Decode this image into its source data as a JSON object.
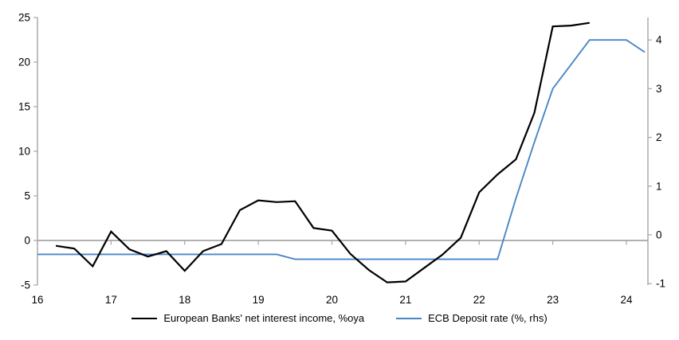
{
  "chart_data": {
    "type": "line",
    "title": "",
    "xlabel": "",
    "ylabel_left": "",
    "ylabel_right": "",
    "grid": "zero-line-only",
    "legend_position": "bottom",
    "x_axis": {
      "ticks": [
        16,
        17,
        18,
        19,
        20,
        21,
        22,
        23,
        24
      ],
      "min": 16,
      "max": 24.29
    },
    "left_axis": {
      "ticks": [
        -5,
        0,
        5,
        10,
        15,
        20,
        25
      ],
      "min": -5,
      "max": 25
    },
    "right_axis": {
      "ticks": [
        -1,
        0,
        1,
        2,
        3,
        4
      ],
      "min": -1.03,
      "max": 4.46
    },
    "series": [
      {
        "name": "European Banks' net interest income, %oya",
        "axis": "left",
        "color": "#000000",
        "x": [
          16.25,
          16.5,
          16.75,
          17,
          17.25,
          17.5,
          17.75,
          18,
          18.25,
          18.5,
          18.75,
          19,
          19.25,
          19.5,
          19.75,
          20,
          20.25,
          20.5,
          20.75,
          21,
          21.25,
          21.5,
          21.75,
          22,
          22.25,
          22.5,
          22.75,
          23,
          23.25,
          23.5
        ],
        "values": [
          -0.6,
          -0.9,
          -2.9,
          1.0,
          -1.0,
          -1.8,
          -1.2,
          -3.4,
          -1.2,
          -0.4,
          3.4,
          4.5,
          4.3,
          4.4,
          1.4,
          1.1,
          -1.5,
          -3.3,
          -4.7,
          -4.6,
          -3.1,
          -1.6,
          0.3,
          5.4,
          7.4,
          9.1,
          14.3,
          24.0,
          24.1,
          24.4
        ]
      },
      {
        "name": "ECB Deposit rate (%, rhs)",
        "axis": "right",
        "color": "#4a86c5",
        "x": [
          16,
          16.25,
          16.5,
          16.75,
          17,
          17.25,
          17.5,
          17.75,
          18,
          18.25,
          18.5,
          18.75,
          19,
          19.25,
          19.5,
          19.75,
          20,
          20.25,
          20.5,
          20.75,
          21,
          21.25,
          21.5,
          21.75,
          22,
          22.25,
          22.5,
          22.75,
          23,
          23.25,
          23.5,
          23.75,
          24,
          24.25
        ],
        "values": [
          -0.4,
          -0.4,
          -0.4,
          -0.4,
          -0.4,
          -0.4,
          -0.4,
          -0.4,
          -0.4,
          -0.4,
          -0.4,
          -0.4,
          -0.4,
          -0.4,
          -0.5,
          -0.5,
          -0.5,
          -0.5,
          -0.5,
          -0.5,
          -0.5,
          -0.5,
          -0.5,
          -0.5,
          -0.5,
          -0.5,
          0.75,
          1.9,
          3.0,
          3.5,
          4.0,
          4.0,
          4.0,
          3.75
        ]
      }
    ]
  },
  "colors": {
    "axis": "#a6a6a6",
    "gridline": "#a6a6a6",
    "tick": "#a6a6a6",
    "text": "#000000"
  }
}
